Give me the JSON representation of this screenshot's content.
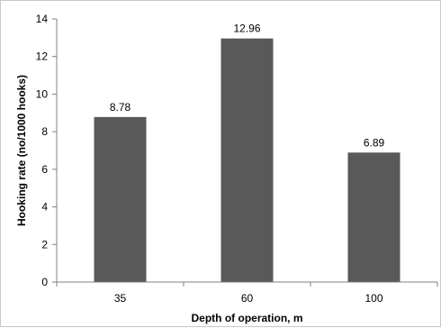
{
  "chart_data": {
    "type": "bar",
    "categories": [
      "35",
      "60",
      "100"
    ],
    "values": [
      8.78,
      12.96,
      6.89
    ],
    "data_labels": [
      "8.78",
      "12.96",
      "6.89"
    ],
    "title": "",
    "xlabel": "Depth of operation, m",
    "ylabel": "Hooking rate (no/1000 hooks)",
    "ylim": [
      0,
      14
    ],
    "yticks": [
      "0",
      "2",
      "4",
      "6",
      "8",
      "10",
      "12",
      "14"
    ],
    "grid": false,
    "legend": "none",
    "bar_color": "#595959",
    "axis_color": "#808080"
  }
}
